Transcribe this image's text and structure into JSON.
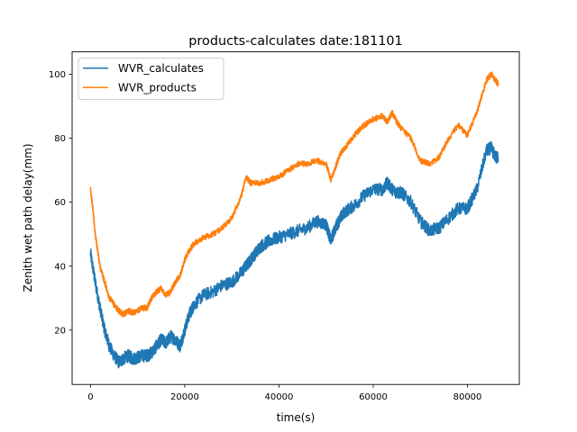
{
  "chart_data": {
    "type": "line",
    "title": "products-calculates date:181101",
    "xlabel": "time(s)",
    "ylabel": "Zenith wet path delay(mm)",
    "xlim": [
      -3900,
      91000
    ],
    "ylim": [
      3,
      107
    ],
    "xticks": [
      0,
      20000,
      40000,
      60000,
      80000
    ],
    "xtick_labels": [
      "0",
      "20000",
      "40000",
      "60000",
      "80000"
    ],
    "yticks": [
      20,
      40,
      60,
      80,
      100
    ],
    "ytick_labels": [
      "20",
      "40",
      "60",
      "80",
      "100"
    ],
    "grid": false,
    "legend_position": "upper-left",
    "series": [
      {
        "name": "WVR_calculates",
        "color": "#1f77b4",
        "noise_amplitude": 2.0,
        "x": [
          0,
          1000,
          2000,
          3000,
          4000,
          5000,
          6000,
          7000,
          8000,
          9000,
          10000,
          11000,
          12000,
          13000,
          14000,
          15000,
          16000,
          17000,
          18000,
          19000,
          20000,
          21000,
          22000,
          24000,
          26000,
          28000,
          30000,
          32000,
          33000,
          34000,
          35000,
          36000,
          37000,
          38000,
          40000,
          42000,
          44000,
          46000,
          48000,
          50000,
          51000,
          52000,
          53000,
          54000,
          56000,
          58000,
          60000,
          62000,
          63000,
          64000,
          65000,
          66000,
          68000,
          70000,
          72000,
          74000,
          76000,
          78000,
          80000,
          82000,
          84000,
          85000,
          86000,
          86500
        ],
        "y": [
          44,
          35,
          27,
          20,
          15,
          12,
          10,
          11,
          12,
          11,
          11.5,
          12,
          12,
          13,
          15,
          17,
          16,
          18,
          17,
          15,
          20,
          25,
          28,
          31,
          32,
          34,
          35,
          38,
          40,
          42,
          44,
          46,
          47,
          48,
          49,
          50,
          51,
          52,
          54,
          53,
          48,
          52,
          55,
          57,
          59,
          62,
          64,
          64,
          66,
          64,
          63,
          63,
          60,
          54,
          51,
          52,
          55,
          58,
          58,
          64,
          76,
          77,
          74,
          74
        ]
      },
      {
        "name": "WVR_products",
        "color": "#ff7f0e",
        "noise_amplitude": 0.9,
        "x": [
          0,
          500,
          1000,
          1500,
          2000,
          3000,
          4000,
          5000,
          6000,
          7000,
          8000,
          9000,
          10000,
          11000,
          12000,
          13000,
          14000,
          15000,
          16000,
          17000,
          18000,
          19000,
          20000,
          21000,
          22000,
          24000,
          26000,
          28000,
          30000,
          32000,
          33000,
          34000,
          36000,
          38000,
          40000,
          42000,
          44000,
          46000,
          48000,
          50000,
          51000,
          52000,
          53000,
          54000,
          56000,
          58000,
          60000,
          62000,
          63000,
          64000,
          65000,
          66000,
          68000,
          70000,
          72000,
          74000,
          76000,
          78000,
          80000,
          82000,
          84000,
          85000,
          86000,
          86500
        ],
        "y": [
          64,
          58,
          50,
          45,
          40,
          35,
          30,
          28,
          26,
          25,
          26,
          25.5,
          26,
          27,
          27,
          30,
          32,
          33,
          31,
          32,
          35,
          37,
          42,
          45,
          47,
          49,
          50,
          52,
          55,
          62,
          68,
          66,
          66,
          67,
          68,
          70,
          72,
          72,
          73,
          72,
          67,
          71,
          75,
          77,
          81,
          84,
          86,
          87,
          85,
          88,
          85,
          83,
          80,
          73,
          72,
          74,
          80,
          84,
          81,
          88,
          98,
          100,
          98,
          97
        ]
      }
    ]
  }
}
